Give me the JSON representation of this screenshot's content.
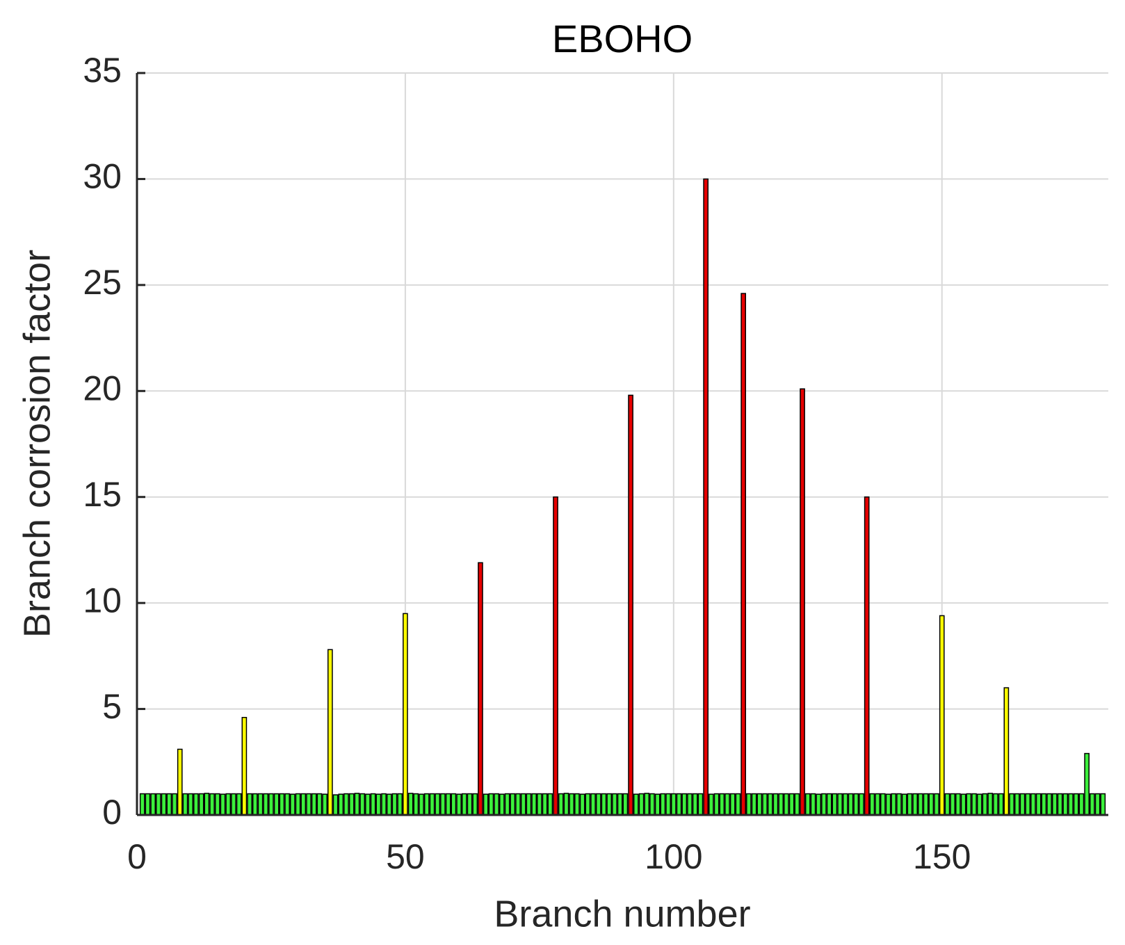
{
  "chart_data": {
    "type": "bar",
    "title": "EBOHO",
    "x_label": "Branch number",
    "y_label": "Branch corrosion factor",
    "xlim": [
      0,
      181
    ],
    "xticks": [
      0,
      50,
      100,
      150
    ],
    "ylim": [
      0,
      35
    ],
    "yticks": [
      0,
      5,
      10,
      15,
      20,
      25,
      30,
      35
    ],
    "grid": true,
    "series": [
      {
        "color": "#3cf03c",
        "x": [
          1,
          2,
          3,
          4,
          5,
          6,
          7,
          9,
          10,
          11,
          12,
          13,
          14,
          15,
          16,
          17,
          18,
          19,
          21,
          22,
          23,
          24,
          25,
          26,
          27,
          28,
          29,
          30,
          31,
          32,
          33,
          34,
          35,
          37,
          38,
          39,
          40,
          41,
          42,
          43,
          44,
          45,
          46,
          47,
          48,
          49,
          51,
          52,
          53,
          54,
          55,
          56,
          57,
          58,
          59,
          60,
          61,
          62,
          63,
          65,
          66,
          67,
          68,
          69,
          70,
          71,
          72,
          73,
          74,
          75,
          76,
          77,
          79,
          80,
          81,
          82,
          83,
          84,
          85,
          86,
          87,
          88,
          89,
          90,
          91,
          93,
          94,
          95,
          96,
          97,
          98,
          99,
          100,
          101,
          102,
          103,
          104,
          105,
          107,
          108,
          109,
          110,
          111,
          112,
          114,
          115,
          116,
          117,
          118,
          119,
          120,
          121,
          122,
          123,
          125,
          126,
          127,
          128,
          129,
          130,
          131,
          132,
          133,
          134,
          135,
          137,
          138,
          139,
          140,
          141,
          142,
          143,
          144,
          145,
          146,
          147,
          148,
          149,
          151,
          152,
          153,
          154,
          155,
          156,
          157,
          158,
          159,
          160,
          161,
          163,
          164,
          165,
          166,
          167,
          168,
          169,
          170,
          171,
          172,
          173,
          174,
          175,
          176,
          177,
          178,
          179,
          180
        ],
        "values": [
          1,
          1,
          1,
          1,
          1,
          1,
          1,
          1,
          1,
          1,
          1,
          1.02,
          1,
          1,
          0.98,
          1,
          1,
          1,
          1,
          1,
          1,
          1,
          1,
          1,
          1,
          1,
          0.98,
          1,
          1,
          1,
          1,
          1,
          0.98,
          0.95,
          0.98,
          1,
          1,
          1.02,
          1,
          0.98,
          1,
          0.98,
          1,
          0.98,
          1,
          1,
          1.02,
          1,
          0.98,
          1,
          1,
          1,
          1,
          1,
          1,
          0.98,
          1,
          1,
          1,
          0.98,
          1,
          1,
          0.98,
          1,
          1,
          1,
          1,
          1,
          1,
          1,
          1,
          1,
          1,
          1.02,
          1,
          1,
          0.98,
          1,
          1,
          1,
          1,
          1,
          1,
          1,
          1,
          0.98,
          1,
          1.02,
          1,
          0.98,
          1,
          1,
          1,
          1,
          1,
          1,
          1,
          1,
          0.98,
          1,
          1,
          1,
          1,
          1,
          1,
          1,
          1,
          1,
          1,
          1,
          1,
          1,
          1,
          1,
          1,
          1,
          0.98,
          1,
          1,
          1,
          1,
          1,
          1,
          1,
          1,
          1,
          1,
          1,
          0.98,
          1,
          1,
          0.98,
          1,
          1,
          1,
          1,
          1,
          1,
          1,
          1,
          1,
          0.98,
          1,
          1,
          0.98,
          1,
          1.02,
          1,
          1,
          1,
          1,
          1,
          1,
          1,
          1,
          1,
          1,
          1,
          1,
          1,
          1,
          1,
          1,
          2.9,
          1,
          1,
          1
        ]
      },
      {
        "color": "#ffff00",
        "x": [
          8,
          20,
          36,
          50,
          150,
          162
        ],
        "values": [
          3.1,
          4.6,
          7.8,
          9.5,
          9.4,
          6
        ]
      },
      {
        "color": "#e60000",
        "x": [
          64,
          78,
          92,
          106,
          113,
          124,
          136
        ],
        "values": [
          11.9,
          15,
          19.8,
          30,
          24.6,
          20.1,
          15
        ]
      }
    ]
  }
}
